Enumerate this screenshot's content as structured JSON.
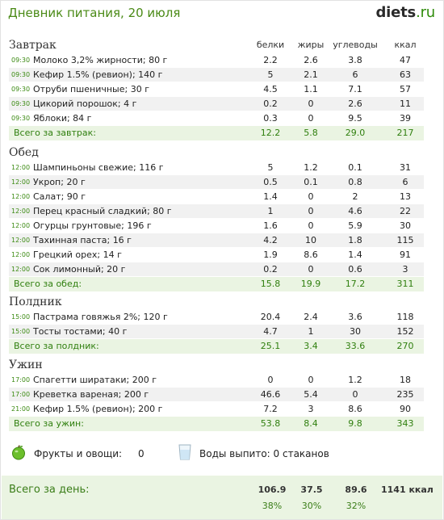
{
  "header": {
    "title": "Дневник питания, 20 июля",
    "logo_main": "diets",
    "logo_tld": ".ru"
  },
  "columns": [
    "белки",
    "жиры",
    "углеводы",
    "ккал"
  ],
  "meals": [
    {
      "name": "Завтрак",
      "rows": [
        {
          "time": "09:30",
          "name": "Молоко 3,2% жирности; 80 г",
          "b": "2.2",
          "z": "2.6",
          "u": "3.8",
          "k": "47"
        },
        {
          "time": "09:30",
          "name": "Кефир 1.5% (ревион); 140 г",
          "b": "5",
          "z": "2.1",
          "u": "6",
          "k": "63"
        },
        {
          "time": "09:30",
          "name": "Отруби пшеничные; 30 г",
          "b": "4.5",
          "z": "1.1",
          "u": "7.1",
          "k": "57"
        },
        {
          "time": "09:30",
          "name": "Цикорий порошок; 4 г",
          "b": "0.2",
          "z": "0",
          "u": "2.6",
          "k": "11"
        },
        {
          "time": "09:30",
          "name": "Яблоки; 84 г",
          "b": "0.3",
          "z": "0",
          "u": "9.5",
          "k": "39"
        }
      ],
      "total": {
        "label": "Всего за завтрак:",
        "b": "12.2",
        "z": "5.8",
        "u": "29.0",
        "k": "217"
      }
    },
    {
      "name": "Обед",
      "rows": [
        {
          "time": "12:00",
          "name": "Шампиньоны свежие; 116 г",
          "b": "5",
          "z": "1.2",
          "u": "0.1",
          "k": "31"
        },
        {
          "time": "12:00",
          "name": "Укроп; 20 г",
          "b": "0.5",
          "z": "0.1",
          "u": "0.8",
          "k": "6"
        },
        {
          "time": "12:00",
          "name": "Салат; 90 г",
          "b": "1.4",
          "z": "0",
          "u": "2",
          "k": "13"
        },
        {
          "time": "12:00",
          "name": "Перец красный сладкий; 80 г",
          "b": "1",
          "z": "0",
          "u": "4.6",
          "k": "22"
        },
        {
          "time": "12:00",
          "name": "Огурцы грунтовые; 196 г",
          "b": "1.6",
          "z": "0",
          "u": "5.9",
          "k": "30"
        },
        {
          "time": "12:00",
          "name": "Тахинная паста; 16 г",
          "b": "4.2",
          "z": "10",
          "u": "1.8",
          "k": "115"
        },
        {
          "time": "12:00",
          "name": "Грецкий орех; 14 г",
          "b": "1.9",
          "z": "8.6",
          "u": "1.4",
          "k": "91"
        },
        {
          "time": "12:00",
          "name": "Сок лимонный; 20 г",
          "b": "0.2",
          "z": "0",
          "u": "0.6",
          "k": "3"
        }
      ],
      "total": {
        "label": "Всего за обед:",
        "b": "15.8",
        "z": "19.9",
        "u": "17.2",
        "k": "311"
      }
    },
    {
      "name": "Полдник",
      "rows": [
        {
          "time": "15:00",
          "name": "Пастрама говяжья 2%; 120 г",
          "b": "20.4",
          "z": "2.4",
          "u": "3.6",
          "k": "118"
        },
        {
          "time": "15:00",
          "name": "Тосты тостами; 40 г",
          "b": "4.7",
          "z": "1",
          "u": "30",
          "k": "152"
        }
      ],
      "total": {
        "label": "Всего за полдник:",
        "b": "25.1",
        "z": "3.4",
        "u": "33.6",
        "k": "270"
      }
    },
    {
      "name": "Ужин",
      "rows": [
        {
          "time": "17:00",
          "name": "Спагетти ширатаки; 200 г",
          "b": "0",
          "z": "0",
          "u": "1.2",
          "k": "18"
        },
        {
          "time": "17:00",
          "name": "Креветка вареная; 200 г",
          "b": "46.6",
          "z": "5.4",
          "u": "0",
          "k": "235"
        },
        {
          "time": "21:00",
          "name": "Кефир 1.5% (ревион); 200 г",
          "b": "7.2",
          "z": "3",
          "u": "8.6",
          "k": "90"
        }
      ],
      "total": {
        "label": "Всего за ужин:",
        "b": "53.8",
        "z": "8.4",
        "u": "9.8",
        "k": "343"
      }
    }
  ],
  "extras": {
    "fruit_label": "Фрукты и овощи:",
    "fruit_value": "0",
    "water_label": "Воды выпито: 0 стаканов"
  },
  "day": {
    "label": "Всего за день:",
    "b": "106.9",
    "z": "37.5",
    "u": "89.6",
    "k": "1141 ккал",
    "bp": "38%",
    "zp": "30%",
    "up": "32%"
  },
  "colors": {
    "accent": "#4a8a16",
    "total_bg": "#eaf4e2",
    "row_alt": "#f1f1f1"
  }
}
